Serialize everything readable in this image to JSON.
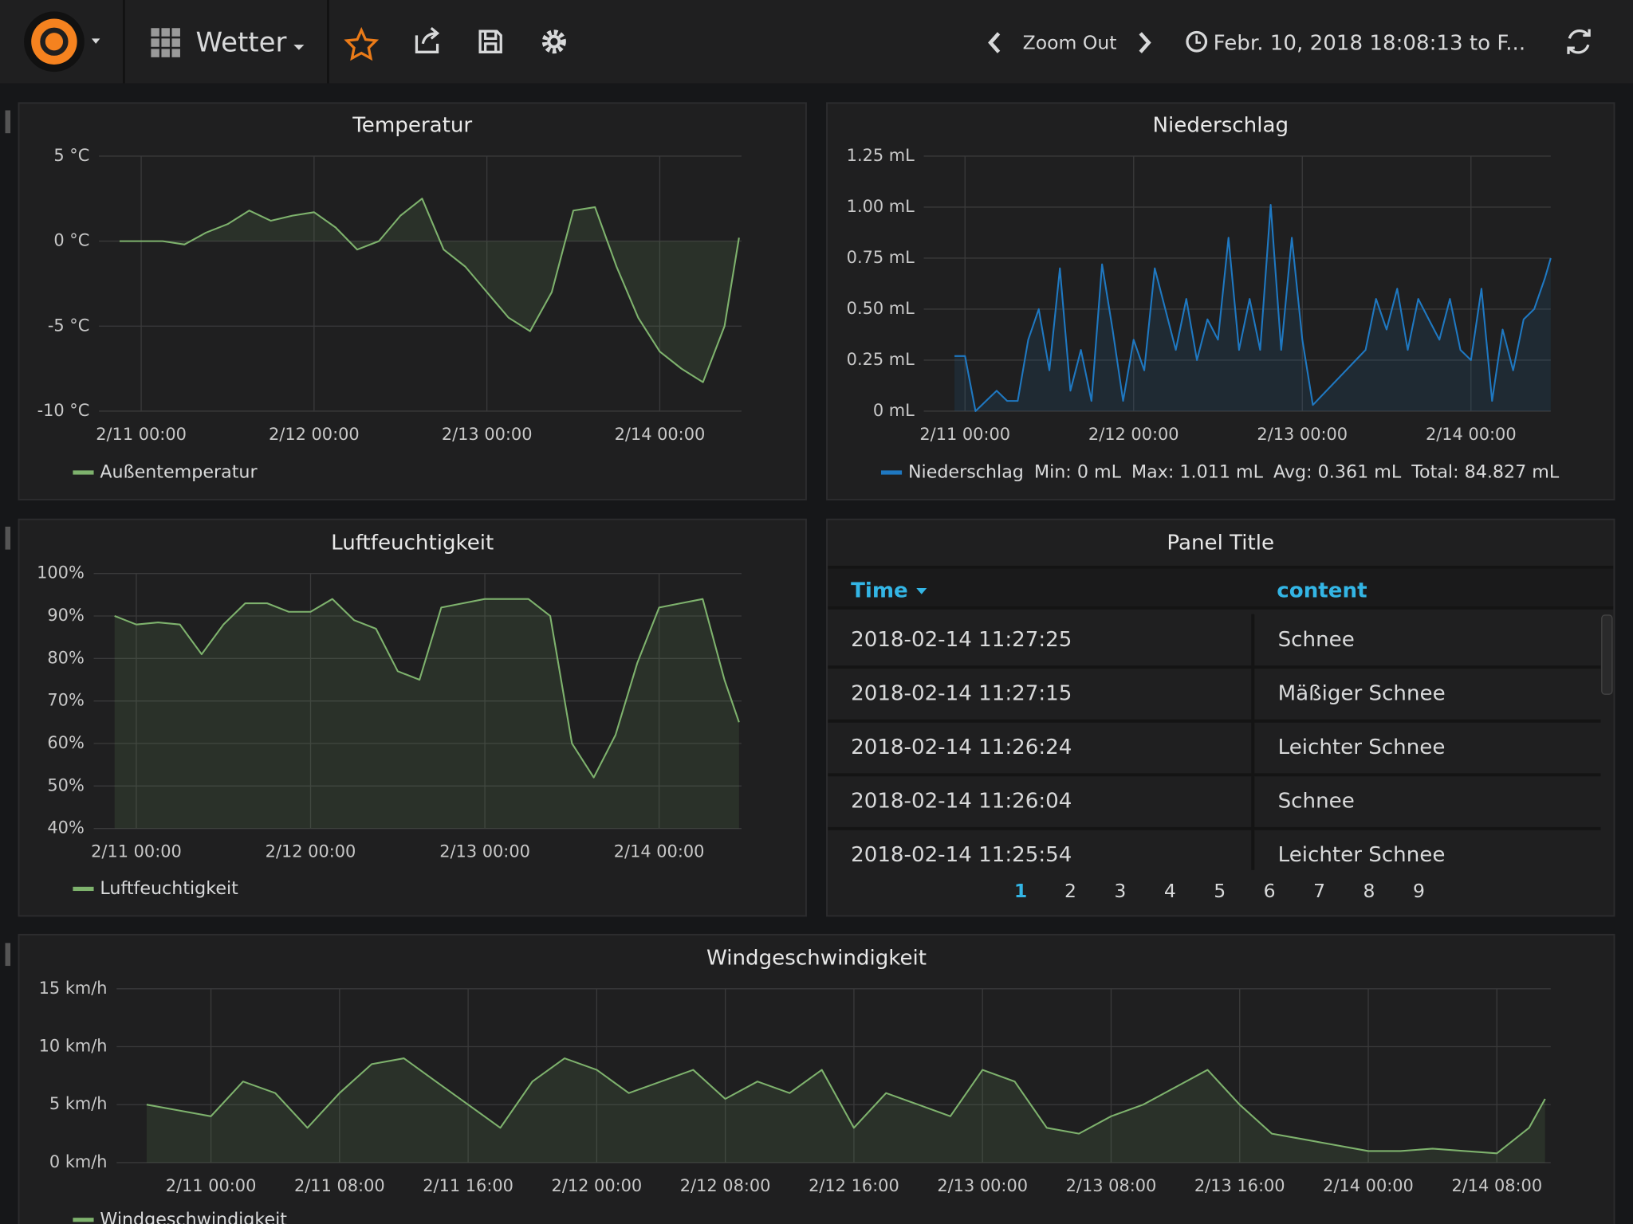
{
  "header": {
    "dashboard": "Wetter",
    "zoom": "Zoom Out",
    "time_range": "Febr. 10, 2018 18:08:13 to F..."
  },
  "chart_data": [
    {
      "type": "line",
      "title": "Temperatur",
      "x": [
        "2/10 21:00",
        "2/11 00:00",
        "2/11 03:00",
        "2/11 06:00",
        "2/11 09:00",
        "2/11 12:00",
        "2/11 15:00",
        "2/11 18:00",
        "2/11 21:00",
        "2/12 00:00",
        "2/12 03:00",
        "2/12 06:00",
        "2/12 09:00",
        "2/12 12:00",
        "2/12 15:00",
        "2/12 18:00",
        "2/12 21:00",
        "2/13 00:00",
        "2/13 03:00",
        "2/13 06:00",
        "2/13 09:00",
        "2/13 12:00",
        "2/13 15:00",
        "2/13 18:00",
        "2/13 21:00",
        "2/14 00:00",
        "2/14 03:00",
        "2/14 06:00",
        "2/14 09:00",
        "2/14 11:00"
      ],
      "series": [
        {
          "name": "Außentemperatur",
          "color": "#7eb26d",
          "values": [
            0,
            0,
            0,
            -0.2,
            0.5,
            1,
            1.8,
            1.2,
            1.5,
            1.7,
            0.8,
            -0.5,
            0,
            1.5,
            2.5,
            -0.5,
            -1.5,
            -3,
            -4.5,
            -5.3,
            -3,
            1.8,
            2,
            -1.5,
            -4.5,
            -6.5,
            -7.5,
            -8.3,
            -5,
            0.2
          ]
        }
      ],
      "xlim": [
        "2/10 18:08",
        "2/14 11:21"
      ],
      "xticks": [
        "2/11 00:00",
        "2/12 00:00",
        "2/13 00:00",
        "2/14 00:00"
      ],
      "ylim": [
        -10,
        5
      ],
      "yticks": [
        {
          "value": -10,
          "label": "-10 °C"
        },
        {
          "value": -5,
          "label": "-5 °C"
        },
        {
          "value": 0,
          "label": "0 °C"
        },
        {
          "value": 5,
          "label": "5 °C"
        }
      ],
      "grid": true,
      "fill": true
    },
    {
      "type": "line",
      "title": "Niederschlag",
      "x": [
        "2/10 22:30",
        "2/11 00:00",
        "2/11 01:30",
        "2/11 03:00",
        "2/11 04:30",
        "2/11 06:00",
        "2/11 07:30",
        "2/11 09:00",
        "2/11 10:30",
        "2/11 12:00",
        "2/11 13:30",
        "2/11 15:00",
        "2/11 16:30",
        "2/11 18:00",
        "2/11 19:30",
        "2/11 21:00",
        "2/11 22:30",
        "2/12 00:00",
        "2/12 01:30",
        "2/12 03:00",
        "2/12 04:30",
        "2/12 06:00",
        "2/12 07:30",
        "2/12 09:00",
        "2/12 10:30",
        "2/12 12:00",
        "2/12 13:30",
        "2/12 15:00",
        "2/12 16:30",
        "2/12 18:00",
        "2/12 19:30",
        "2/12 21:00",
        "2/12 22:30",
        "2/13 00:00",
        "2/13 01:30",
        "2/13 09:00",
        "2/13 10:30",
        "2/13 12:00",
        "2/13 13:30",
        "2/13 15:00",
        "2/13 16:30",
        "2/13 18:00",
        "2/13 19:30",
        "2/13 21:00",
        "2/13 22:30",
        "2/14 00:00",
        "2/14 01:30",
        "2/14 03:00",
        "2/14 04:30",
        "2/14 06:00",
        "2/14 07:30",
        "2/14 09:00",
        "2/14 10:30",
        "2/14 11:21"
      ],
      "series": [
        {
          "name": "Niederschlag",
          "color": "#1f78c1",
          "values": [
            0.27,
            0.27,
            0,
            0.05,
            0.1,
            0.05,
            0.05,
            0.35,
            0.5,
            0.2,
            0.7,
            0.1,
            0.3,
            0.05,
            0.72,
            0.4,
            0.05,
            0.35,
            0.2,
            0.7,
            0.5,
            0.3,
            0.55,
            0.25,
            0.45,
            0.35,
            0.85,
            0.3,
            0.55,
            0.3,
            1.011,
            0.3,
            0.85,
            0.35,
            0.03,
            0.3,
            0.55,
            0.4,
            0.6,
            0.3,
            0.55,
            0.45,
            0.35,
            0.55,
            0.3,
            0.25,
            0.6,
            0.05,
            0.4,
            0.2,
            0.45,
            0.5,
            0.65,
            0.75
          ]
        }
      ],
      "legend_stats": [
        "Min: 0 mL",
        "Max: 1.011 mL",
        "Avg: 0.361 mL",
        "Total: 84.827 mL"
      ],
      "xlim": [
        "2/10 18:08",
        "2/14 11:21"
      ],
      "xticks": [
        "2/11 00:00",
        "2/12 00:00",
        "2/13 00:00",
        "2/14 00:00"
      ],
      "ylim": [
        0,
        1.25
      ],
      "yticks": [
        {
          "value": 0,
          "label": "0 mL"
        },
        {
          "value": 0.25,
          "label": "0.25 mL"
        },
        {
          "value": 0.5,
          "label": "0.50 mL"
        },
        {
          "value": 0.75,
          "label": "0.75 mL"
        },
        {
          "value": 1,
          "label": "1.00 mL"
        },
        {
          "value": 1.25,
          "label": "1.25 mL"
        }
      ],
      "grid": true,
      "fill": true
    },
    {
      "type": "line",
      "title": "Luftfeuchtigkeit",
      "x": [
        "2/10 21:00",
        "2/11 00:00",
        "2/11 03:00",
        "2/11 06:00",
        "2/11 09:00",
        "2/11 12:00",
        "2/11 15:00",
        "2/11 18:00",
        "2/11 21:00",
        "2/12 00:00",
        "2/12 03:00",
        "2/12 06:00",
        "2/12 09:00",
        "2/12 12:00",
        "2/12 15:00",
        "2/12 18:00",
        "2/12 21:00",
        "2/13 00:00",
        "2/13 03:00",
        "2/13 06:00",
        "2/13 09:00",
        "2/13 12:00",
        "2/13 15:00",
        "2/13 18:00",
        "2/13 21:00",
        "2/14 00:00",
        "2/14 03:00",
        "2/14 06:00",
        "2/14 09:00",
        "2/14 11:00"
      ],
      "series": [
        {
          "name": "Luftfeuchtigkeit",
          "color": "#7eb26d",
          "values": [
            90,
            88,
            88.5,
            88,
            81,
            88,
            93,
            93,
            91,
            91,
            94,
            89,
            87,
            77,
            75,
            92,
            93,
            94,
            94,
            94,
            90,
            60,
            52,
            62,
            79,
            92,
            93,
            94,
            75,
            65
          ]
        }
      ],
      "xlim": [
        "2/10 18:08",
        "2/14 11:21"
      ],
      "xticks": [
        "2/11 00:00",
        "2/12 00:00",
        "2/13 00:00",
        "2/14 00:00"
      ],
      "ylim": [
        40,
        100
      ],
      "yticks": [
        {
          "value": 40,
          "label": "40%"
        },
        {
          "value": 50,
          "label": "50%"
        },
        {
          "value": 60,
          "label": "60%"
        },
        {
          "value": 70,
          "label": "70%"
        },
        {
          "value": 80,
          "label": "80%"
        },
        {
          "value": 90,
          "label": "90%"
        },
        {
          "value": 100,
          "label": "100%"
        }
      ],
      "grid": true,
      "fill": true
    },
    {
      "type": "line",
      "title": "Windgeschwindigkeit",
      "x": [
        "2/10 20:00",
        "2/10 22:00",
        "2/11 00:00",
        "2/11 02:00",
        "2/11 04:00",
        "2/11 06:00",
        "2/11 08:00",
        "2/11 10:00",
        "2/11 12:00",
        "2/11 14:00",
        "2/11 16:00",
        "2/11 18:00",
        "2/11 20:00",
        "2/11 22:00",
        "2/12 00:00",
        "2/12 02:00",
        "2/12 04:00",
        "2/12 06:00",
        "2/12 08:00",
        "2/12 10:00",
        "2/12 12:00",
        "2/12 14:00",
        "2/12 16:00",
        "2/12 18:00",
        "2/12 20:00",
        "2/12 22:00",
        "2/13 00:00",
        "2/13 02:00",
        "2/13 04:00",
        "2/13 06:00",
        "2/13 08:00",
        "2/13 10:00",
        "2/13 12:00",
        "2/13 14:00",
        "2/13 16:00",
        "2/13 18:00",
        "2/13 20:00",
        "2/13 22:00",
        "2/14 00:00",
        "2/14 02:00",
        "2/14 04:00",
        "2/14 06:00",
        "2/14 08:00",
        "2/14 10:00",
        "2/14 11:00"
      ],
      "series": [
        {
          "name": "Windgeschwindigkeit",
          "color": "#7eb26d",
          "values": [
            5,
            4.5,
            4,
            7,
            6,
            3,
            6,
            8.5,
            9,
            7,
            5,
            3,
            7,
            9,
            8,
            6,
            7,
            8,
            5.5,
            7,
            6,
            8,
            3,
            6,
            5,
            4,
            8,
            7,
            3,
            2.5,
            4,
            5,
            6.5,
            8,
            5,
            2.5,
            2,
            1.5,
            1,
            1,
            1.2,
            1,
            0.8,
            3,
            5.5
          ]
        }
      ],
      "xlim": [
        "2/10 18:08",
        "2/14 11:21"
      ],
      "xticks": [
        "2/11 00:00",
        "2/11 08:00",
        "2/11 16:00",
        "2/12 00:00",
        "2/12 08:00",
        "2/12 16:00",
        "2/13 00:00",
        "2/13 08:00",
        "2/13 16:00",
        "2/14 00:00",
        "2/14 08:00"
      ],
      "ylim": [
        0,
        15
      ],
      "yticks": [
        {
          "value": 0,
          "label": "0 km/h"
        },
        {
          "value": 5,
          "label": "5 km/h"
        },
        {
          "value": 10,
          "label": "10 km/h"
        },
        {
          "value": 15,
          "label": "15 km/h"
        }
      ],
      "grid": true,
      "fill": true
    }
  ],
  "table": {
    "title": "Panel Title",
    "columns": [
      "Time",
      "content"
    ],
    "rows": [
      [
        "2018-02-14 11:27:25",
        "Schnee"
      ],
      [
        "2018-02-14 11:27:15",
        "Mäßiger Schnee"
      ],
      [
        "2018-02-14 11:26:24",
        "Leichter Schnee"
      ],
      [
        "2018-02-14 11:26:04",
        "Schnee"
      ],
      [
        "2018-02-14 11:25:54",
        "Leichter Schnee"
      ]
    ],
    "pages": [
      1,
      2,
      3,
      4,
      5,
      6,
      7,
      8,
      9
    ]
  }
}
